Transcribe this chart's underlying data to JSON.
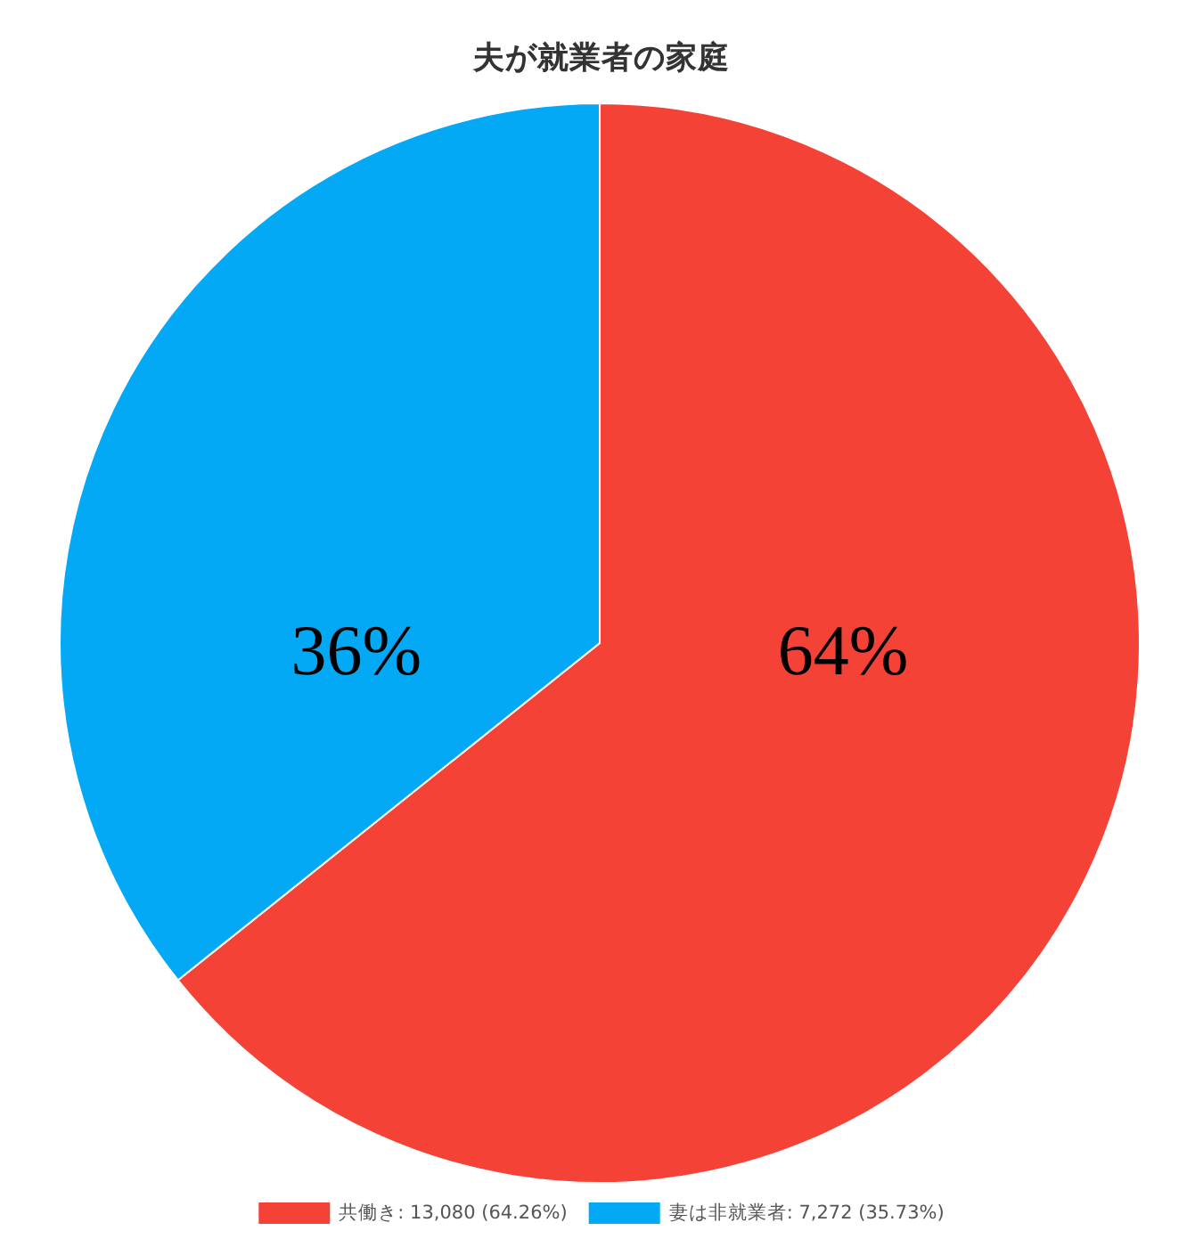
{
  "chart_data": {
    "type": "pie",
    "title": "夫が就業者の家庭",
    "categories": [
      "共働き: 13,080 (64.26%)",
      "妻は非就業者: 7,272 (35.73%)"
    ],
    "values": [
      64.26,
      35.73
    ],
    "colors": [
      "#f44336",
      "#03a9f4"
    ],
    "value_labels": [
      "64%",
      "36%"
    ],
    "legend": "bottom"
  }
}
